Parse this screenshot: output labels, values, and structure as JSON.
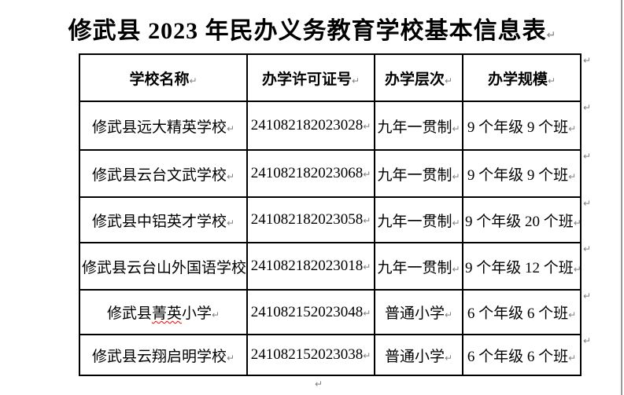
{
  "page": {
    "title": "修武县 2023 年民办义务教育学校基本信息表"
  },
  "marks": {
    "pilcrow": "↵"
  },
  "table": {
    "headers": [
      "学校名称",
      "办学许可证号",
      "办学层次",
      "办学规模"
    ],
    "rows": [
      {
        "school": "修武县远大精英学校",
        "license": "241082182023028",
        "level": "九年一贯制",
        "scale": "9 个年级 9 个班"
      },
      {
        "school": "修武县云台文武学校",
        "license": "241082182023068",
        "level": "九年一贯制",
        "scale": "9 个年级 9 个班"
      },
      {
        "school": "修武县中铝英才学校",
        "license": "241082182023058",
        "level": "九年一贯制",
        "scale": "9 个年级 20 个班"
      },
      {
        "school": "修武县云台山外国语学校",
        "license": "241082182023018",
        "level": "九年一贯制",
        "scale": "9 个年级 12 个班"
      },
      {
        "school": "修武县菁英小学",
        "school_spellcheck_parts": [
          "修武县",
          "菁英",
          "小学"
        ],
        "license": "241082152023048",
        "level": "普通小学",
        "scale": "6 个年级 6 个班"
      },
      {
        "school": "修武县云翔启明学校",
        "license": "241082152023038",
        "level": "普通小学",
        "scale": "6 个年级 6 个班"
      }
    ]
  },
  "colors": {
    "background": "#ffffff",
    "text": "#000000",
    "table_border": "#000000",
    "formatting_mark": "#808080",
    "spellcheck_underline": "#ff0000",
    "page_edge_line": "#9a9a9a"
  }
}
